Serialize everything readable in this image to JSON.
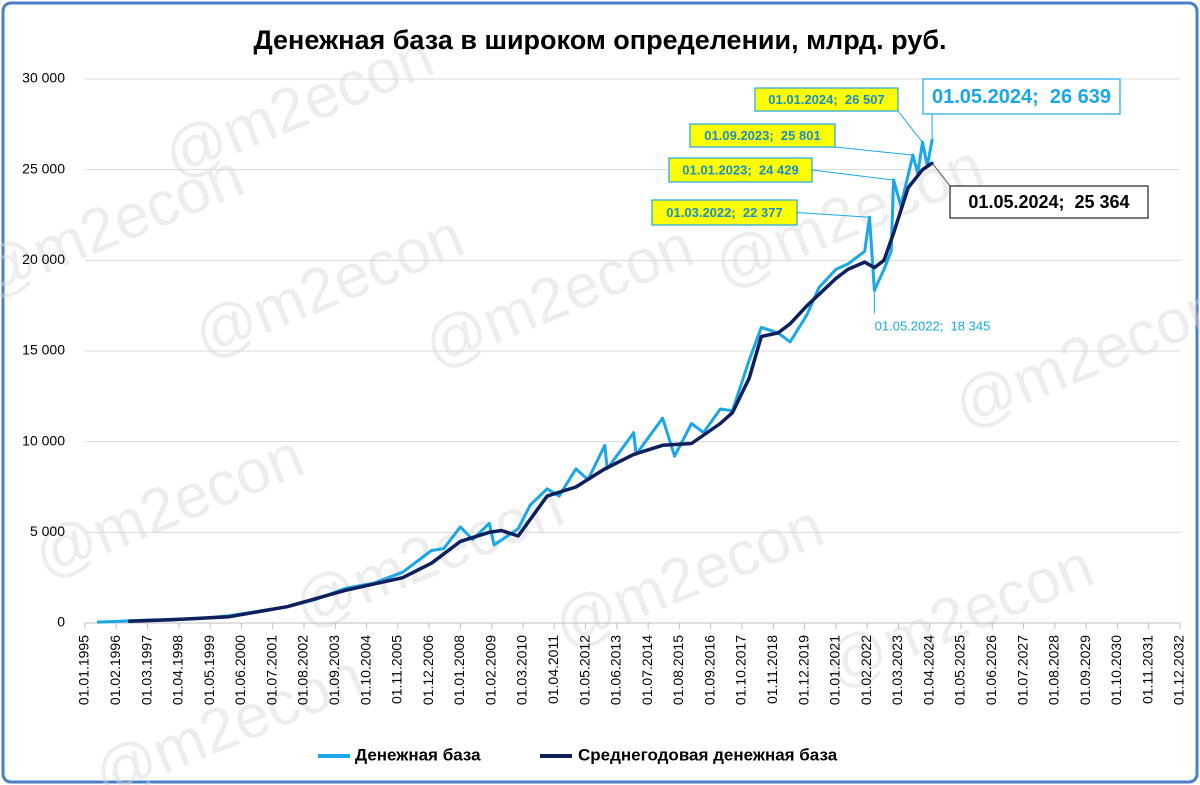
{
  "chart_data": {
    "type": "line",
    "title": "Денежная база в широком определении, млрд. руб.",
    "watermark": "@m2econ",
    "xlim": [
      "01.01.1995",
      "01.12.2032"
    ],
    "xticks": [
      "01.01.1995",
      "01.02.1996",
      "01.03.1997",
      "01.04.1998",
      "01.05.1999",
      "01.06.2000",
      "01.07.2001",
      "01.08.2002",
      "01.09.2003",
      "01.10.2004",
      "01.11.2005",
      "01.12.2006",
      "01.01.2008",
      "01.02.2009",
      "01.03.2010",
      "01.04.2011",
      "01.05.2012",
      "01.06.2013",
      "01.07.2014",
      "01.08.2015",
      "01.09.2016",
      "01.10.2017",
      "01.11.2018",
      "01.12.2019",
      "01.01.2021",
      "01.02.2022",
      "01.03.2023",
      "01.04.2024",
      "01.05.2025",
      "01.06.2026",
      "01.07.2027",
      "01.08.2028",
      "01.09.2029",
      "01.10.2030",
      "01.11.2031",
      "01.12.2032"
    ],
    "ylim": [
      0,
      30000
    ],
    "yticks": [
      0,
      {
        "value": 5000,
        "label": "5 000"
      },
      {
        "value": 10000,
        "label": "10 000"
      },
      {
        "value": 15000,
        "label": "15 000"
      },
      {
        "value": 20000,
        "label": "20 000"
      },
      {
        "value": 25000,
        "label": "25 000"
      },
      {
        "value": 30000,
        "label": "30 000"
      }
    ],
    "grid": true,
    "series": [
      {
        "name": "Денежная база",
        "color": "#1aa7e8",
        "x": [
          "01.06.1995",
          "01.01.1996",
          "01.01.1997",
          "01.01.1998",
          "01.01.1999",
          "01.01.2000",
          "01.01.2001",
          "01.01.2002",
          "01.01.2003",
          "01.01.2004",
          "01.01.2005",
          "01.01.2006",
          "01.01.2007",
          "01.06.2007",
          "01.01.2008",
          "01.06.2008",
          "01.01.2009",
          "01.03.2009",
          "01.01.2010",
          "01.06.2010",
          "01.01.2011",
          "01.06.2011",
          "01.01.2012",
          "01.06.2012",
          "01.01.2013",
          "01.02.2013",
          "01.01.2014",
          "01.02.2014",
          "01.01.2015",
          "01.06.2015",
          "01.01.2016",
          "01.06.2016",
          "01.01.2017",
          "01.06.2017",
          "01.01.2018",
          "01.06.2018",
          "01.01.2019",
          "01.06.2019",
          "01.01.2020",
          "01.06.2020",
          "01.01.2021",
          "01.06.2021",
          "01.01.2022",
          "01.03.2022",
          "01.05.2022",
          "01.09.2022",
          "01.12.2022",
          "01.01.2023",
          "01.04.2023",
          "01.09.2023",
          "01.11.2023",
          "01.01.2024",
          "01.03.2024",
          "01.05.2024"
        ],
        "values": [
          50,
          80,
          150,
          200,
          250,
          400,
          650,
          900,
          1300,
          1900,
          2200,
          2800,
          4000,
          4100,
          5300,
          4600,
          5500,
          4300,
          5200,
          6500,
          7400,
          7000,
          8500,
          7900,
          9800,
          8500,
          10500,
          9300,
          11300,
          9200,
          11000,
          10500,
          11800,
          11700,
          14500,
          16300,
          16000,
          15500,
          17000,
          18500,
          19500,
          19800,
          20500,
          22377,
          18345,
          19500,
          20500,
          24429,
          23000,
          25801,
          24800,
          26507,
          25200,
          26639
        ]
      },
      {
        "name": "Среднегодовая денежная база",
        "color": "#0d1f5c",
        "x": [
          "01.07.1996",
          "01.01.1998",
          "01.01.2000",
          "01.01.2002",
          "01.01.2004",
          "01.01.2006",
          "01.01.2007",
          "01.01.2008",
          "01.01.2009",
          "01.06.2009",
          "01.01.2010",
          "01.01.2011",
          "01.01.2012",
          "01.01.2013",
          "01.01.2014",
          "01.01.2015",
          "01.01.2016",
          "01.01.2017",
          "01.06.2017",
          "01.01.2018",
          "01.06.2018",
          "01.01.2019",
          "01.06.2019",
          "01.01.2020",
          "01.01.2021",
          "01.06.2021",
          "01.01.2022",
          "01.05.2022",
          "01.09.2022",
          "01.01.2023",
          "01.07.2023",
          "01.01.2024",
          "01.05.2024"
        ],
        "values": [
          100,
          180,
          350,
          900,
          1800,
          2500,
          3300,
          4500,
          5000,
          5100,
          4800,
          7000,
          7500,
          8500,
          9300,
          9800,
          9900,
          11000,
          11600,
          13500,
          15800,
          16000,
          16500,
          17500,
          19000,
          19500,
          19900,
          19600,
          20000,
          21500,
          24000,
          25000,
          25364
        ]
      }
    ],
    "annotations": [
      {
        "series": 0,
        "x": "01.03.2022",
        "value": 22377,
        "label": "01.03.2022;  22 377"
      },
      {
        "series": 0,
        "x": "01.01.2023",
        "value": 24429,
        "label": "01.01.2023;  24 429"
      },
      {
        "series": 0,
        "x": "01.09.2023",
        "value": 25801,
        "label": "01.09.2023;  25 801"
      },
      {
        "series": 0,
        "x": "01.01.2024",
        "value": 26507,
        "label": "01.01.2024;  26 507"
      },
      {
        "series": 0,
        "x": "01.05.2022",
        "value": 18345,
        "label": "01.05.2022;  18 345"
      },
      {
        "series": 0,
        "x": "01.05.2024",
        "value": 26639,
        "label": "01.05.2024;  26 639"
      },
      {
        "series": 1,
        "x": "01.05.2024",
        "value": 25364,
        "label": "01.05.2024;  25 364"
      }
    ]
  }
}
